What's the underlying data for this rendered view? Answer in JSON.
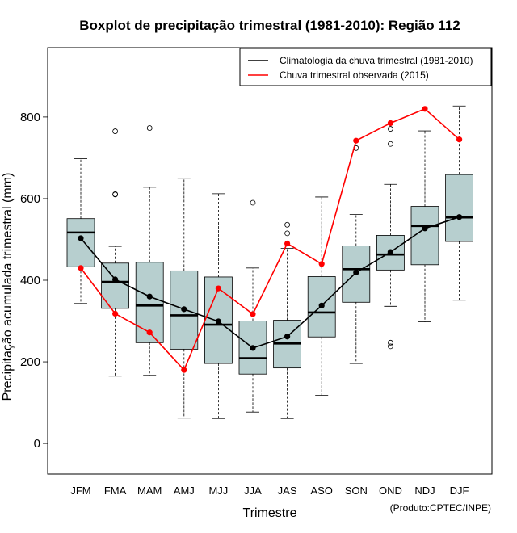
{
  "chart_data": {
    "type": "boxplot",
    "title": "Boxplot de precipitação trimestral (1981-2010): Região 112",
    "xlabel": "Trimestre",
    "ylabel": "Precipitação acumulada trimestral (mm)",
    "ylim": [
      -75,
      970
    ],
    "yticks": [
      0,
      200,
      400,
      600,
      800
    ],
    "credit": "(Produto:CPTEC/INPE)",
    "legend": {
      "position": "top-right",
      "entries": [
        {
          "label": "Climatologia da chuva trimestral (1981-2010)",
          "color": "#000000"
        },
        {
          "label": "Chuva trimestral observada (2015)",
          "color": "#ff0000"
        }
      ]
    },
    "box_color": "#b7cfcf",
    "categories": [
      "JFM",
      "FMA",
      "MAM",
      "AMJ",
      "MJJ",
      "JJA",
      "JAS",
      "ASO",
      "SON",
      "OND",
      "NDJ",
      "DJF"
    ],
    "boxes": [
      {
        "min": 343,
        "q1": 433,
        "median": 517,
        "q3": 551,
        "max": 698,
        "outliers": []
      },
      {
        "min": 165,
        "q1": 331,
        "median": 396,
        "q3": 442,
        "max": 483,
        "outliers": [
          611,
          610,
          765
        ]
      },
      {
        "min": 167,
        "q1": 247,
        "median": 338,
        "q3": 444,
        "max": 628,
        "outliers": [
          773
        ]
      },
      {
        "min": 62,
        "q1": 231,
        "median": 314,
        "q3": 423,
        "max": 650,
        "outliers": []
      },
      {
        "min": 61,
        "q1": 196,
        "median": 291,
        "q3": 408,
        "max": 612,
        "outliers": []
      },
      {
        "min": 77,
        "q1": 170,
        "median": 209,
        "q3": 300,
        "max": 430,
        "outliers": [
          590
        ]
      },
      {
        "min": 61,
        "q1": 185,
        "median": 245,
        "q3": 302,
        "max": 478,
        "outliers": [
          515,
          536
        ]
      },
      {
        "min": 118,
        "q1": 261,
        "median": 321,
        "q3": 409,
        "max": 604,
        "outliers": []
      },
      {
        "min": 196,
        "q1": 346,
        "median": 427,
        "q3": 484,
        "max": 561,
        "outliers": [
          724
        ]
      },
      {
        "min": 336,
        "q1": 425,
        "median": 463,
        "q3": 510,
        "max": 635,
        "outliers": [
          238,
          247,
          734,
          771
        ]
      },
      {
        "min": 298,
        "q1": 438,
        "median": 533,
        "q3": 581,
        "max": 766,
        "outliers": []
      },
      {
        "min": 351,
        "q1": 495,
        "median": 554,
        "q3": 659,
        "max": 827,
        "outliers": []
      }
    ],
    "series": [
      {
        "name": "Climatologia da chuva trimestral (1981-2010)",
        "color": "#000000",
        "values": [
          503,
          402,
          360,
          329,
          299,
          234,
          262,
          338,
          419,
          469,
          527,
          555
        ]
      },
      {
        "name": "Chuva trimestral observada (2015)",
        "color": "#ff0000",
        "values": [
          430,
          318,
          272,
          180,
          380,
          317,
          490,
          440,
          742,
          785,
          820,
          745
        ]
      }
    ]
  }
}
